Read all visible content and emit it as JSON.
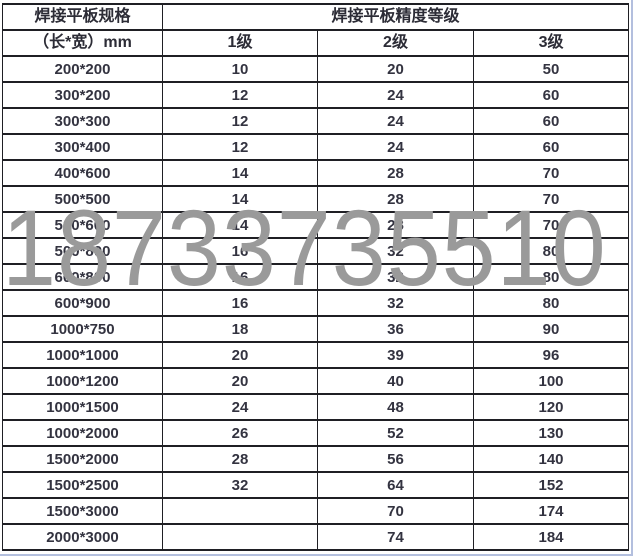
{
  "watermark": "18733735510",
  "table": {
    "header_row1": {
      "spec_title": "焊接平板规格",
      "grade_title": "焊接平板精度等级"
    },
    "header_row2": {
      "size_unit": "（长*宽）mm",
      "grade1": "1级",
      "grade2": "2级",
      "grade3": "3级"
    },
    "rows": [
      [
        "200*200",
        "10",
        "20",
        "50"
      ],
      [
        "300*200",
        "12",
        "24",
        "60"
      ],
      [
        "300*300",
        "12",
        "24",
        "60"
      ],
      [
        "300*400",
        "12",
        "24",
        "60"
      ],
      [
        "400*600",
        "14",
        "28",
        "70"
      ],
      [
        "500*500",
        "14",
        "28",
        "70"
      ],
      [
        "500*600",
        "14",
        "28",
        "70"
      ],
      [
        "500*800",
        "16",
        "32",
        "80"
      ],
      [
        "600*800",
        "16",
        "32",
        "80"
      ],
      [
        "600*900",
        "16",
        "32",
        "80"
      ],
      [
        "1000*750",
        "18",
        "36",
        "90"
      ],
      [
        "1000*1000",
        "20",
        "39",
        "96"
      ],
      [
        "1000*1200",
        "20",
        "40",
        "100"
      ],
      [
        "1000*1500",
        "24",
        "48",
        "120"
      ],
      [
        "1000*2000",
        "26",
        "52",
        "130"
      ],
      [
        "1500*2000",
        "28",
        "56",
        "140"
      ],
      [
        "1500*2500",
        "32",
        "64",
        "152"
      ],
      [
        "1500*3000",
        "",
        "70",
        "174"
      ],
      [
        "2000*3000",
        "",
        "74",
        "184"
      ]
    ]
  },
  "colors": {
    "border": "#1f1f24",
    "text": "#333340",
    "watermark": "#9a9a9a",
    "outer_frame": "#b3bfde",
    "background": "#ffffff"
  }
}
